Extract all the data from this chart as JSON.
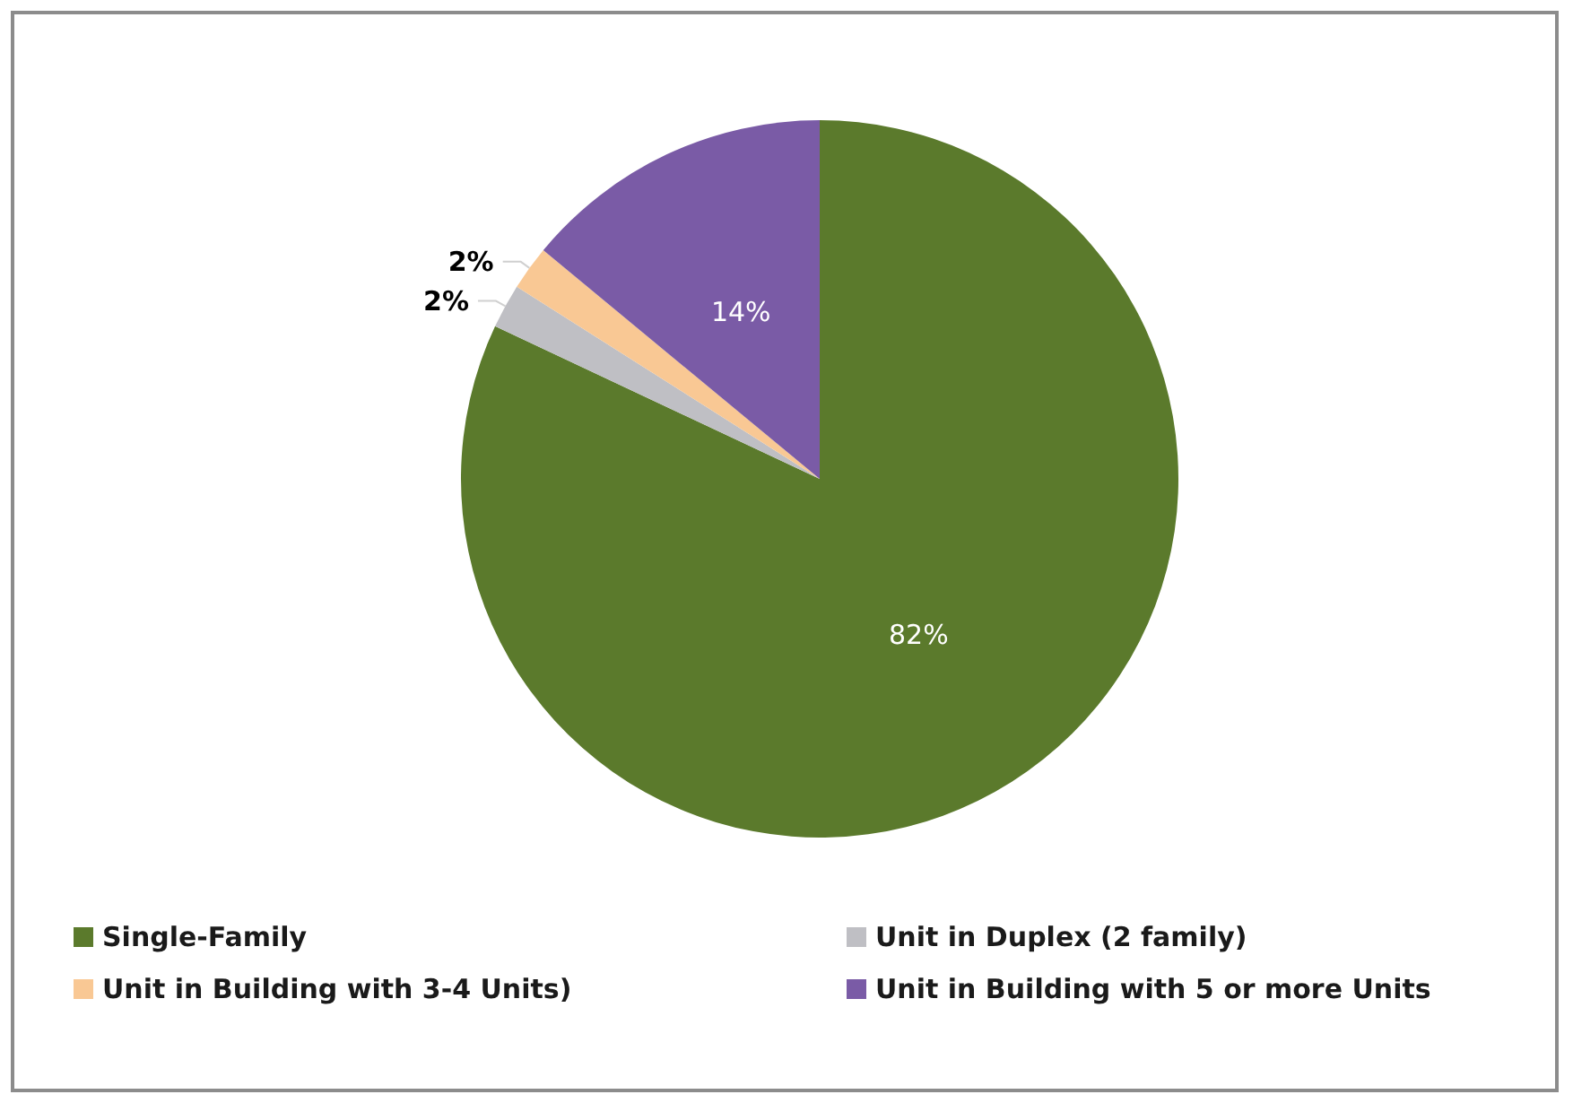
{
  "chart_data": {
    "type": "pie",
    "categories": [
      "Single-Family",
      "Unit in Duplex (2 family)",
      "Unit in Building with 3-4 Units)",
      "Unit in Building with 5 or more Units"
    ],
    "values": [
      82,
      2,
      2,
      14
    ],
    "colors": [
      "#5b7a2c",
      "#bfbfc4",
      "#f9c894",
      "#7a5ba6"
    ],
    "value_labels": [
      "82%",
      "2%",
      "2%",
      "14%"
    ],
    "legend": "bottom"
  }
}
